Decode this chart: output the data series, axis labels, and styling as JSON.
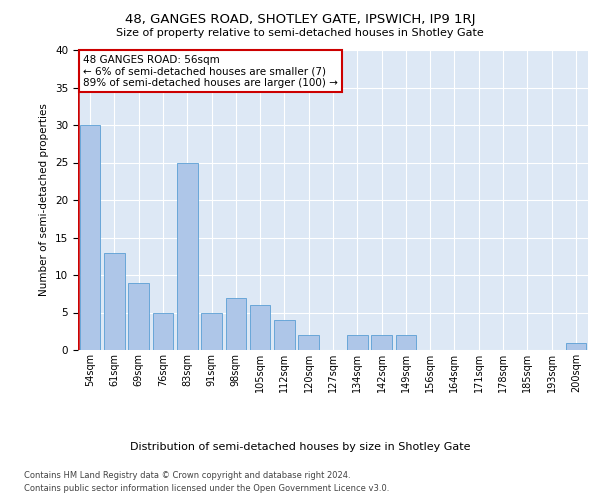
{
  "title1": "48, GANGES ROAD, SHOTLEY GATE, IPSWICH, IP9 1RJ",
  "title2": "Size of property relative to semi-detached houses in Shotley Gate",
  "xlabel": "Distribution of semi-detached houses by size in Shotley Gate",
  "ylabel": "Number of semi-detached properties",
  "categories": [
    "54sqm",
    "61sqm",
    "69sqm",
    "76sqm",
    "83sqm",
    "91sqm",
    "98sqm",
    "105sqm",
    "112sqm",
    "120sqm",
    "127sqm",
    "134sqm",
    "142sqm",
    "149sqm",
    "156sqm",
    "164sqm",
    "171sqm",
    "178sqm",
    "185sqm",
    "193sqm",
    "200sqm"
  ],
  "values": [
    30,
    13,
    9,
    5,
    25,
    5,
    7,
    6,
    4,
    2,
    0,
    2,
    2,
    2,
    0,
    0,
    0,
    0,
    0,
    0,
    1
  ],
  "bar_color": "#aec6e8",
  "bar_edge_color": "#5a9fd4",
  "highlight_color": "#cc0000",
  "annotation_title": "48 GANGES ROAD: 56sqm",
  "annotation_line1": "← 6% of semi-detached houses are smaller (7)",
  "annotation_line2": "89% of semi-detached houses are larger (100) →",
  "annotation_box_color": "#ffffff",
  "annotation_box_edge": "#cc0000",
  "ylim": [
    0,
    40
  ],
  "yticks": [
    0,
    5,
    10,
    15,
    20,
    25,
    30,
    35,
    40
  ],
  "background_color": "#dde8f5",
  "footer1": "Contains HM Land Registry data © Crown copyright and database right 2024.",
  "footer2": "Contains public sector information licensed under the Open Government Licence v3.0."
}
